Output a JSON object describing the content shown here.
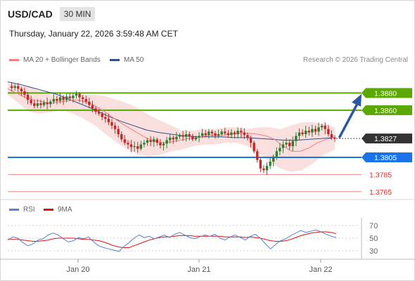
{
  "header": {
    "symbol": "USD/CAD",
    "timeframe": "30 MIN"
  },
  "timestamp": "Thursday, January 22, 2026 3:59:48 AM CET",
  "legend": {
    "ma20": {
      "label": "MA 20 + Bollinger Bands",
      "color": "#f08080"
    },
    "ma50": {
      "label": "MA 50",
      "color": "#2e4f8a"
    }
  },
  "credit": "Research © 2026 Trading Central",
  "rsi_legend": {
    "rsi": {
      "label": "RSI",
      "color": "#5b7fd6"
    },
    "ma9": {
      "label": "9MA",
      "color": "#dd1111"
    }
  },
  "colors": {
    "up": "#2e7d32",
    "down": "#c62828",
    "target_line": "#5aa800",
    "pivot_line": "#1a73e8",
    "support_line": "#f08a8a",
    "arrow": "#2a57a6",
    "current_tag": "#333333"
  },
  "chart_data": [
    {
      "type": "candlestick",
      "title": "",
      "price_ylim": [
        1.3755,
        1.39
      ],
      "levels": [
        {
          "label": "1.3880",
          "value": 1.388,
          "kind": "target"
        },
        {
          "label": "1.3860",
          "value": 1.386,
          "kind": "target"
        },
        {
          "label": "1.3827",
          "value": 1.3827,
          "kind": "current"
        },
        {
          "label": "1.3805",
          "value": 1.3805,
          "kind": "pivot"
        },
        {
          "label": "1.3785",
          "value": 1.3785,
          "kind": "support"
        },
        {
          "label": "1.3765",
          "value": 1.3765,
          "kind": "support"
        }
      ],
      "x_ticks": [
        "Jan 20",
        "Jan 21",
        "Jan 22"
      ],
      "close_path": [
        1.3888,
        1.3886,
        1.3888,
        1.3885,
        1.3882,
        1.3878,
        1.3872,
        1.3868,
        1.3865,
        1.3868,
        1.3866,
        1.3869,
        1.3867,
        1.387,
        1.3873,
        1.3871,
        1.3875,
        1.3872,
        1.3876,
        1.3874,
        1.3877,
        1.3879,
        1.3875,
        1.3873,
        1.387,
        1.3866,
        1.3862,
        1.3858,
        1.3856,
        1.3852,
        1.385,
        1.3846,
        1.3842,
        1.3838,
        1.3832,
        1.3826,
        1.3822,
        1.382,
        1.3817,
        1.3818,
        1.3815,
        1.382,
        1.3822,
        1.3825,
        1.3823,
        1.3826,
        1.3822,
        1.3819,
        1.3821,
        1.3825,
        1.3828,
        1.3826,
        1.3829,
        1.3831,
        1.3829,
        1.3832,
        1.383,
        1.3826,
        1.3828,
        1.383,
        1.3833,
        1.3831,
        1.3835,
        1.3833,
        1.383,
        1.3832,
        1.3835,
        1.3833,
        1.3831,
        1.3834,
        1.3832,
        1.3836,
        1.3834,
        1.3831,
        1.3828,
        1.3822,
        1.3812,
        1.3802,
        1.3792,
        1.379,
        1.3795,
        1.38,
        1.3806,
        1.3812,
        1.3816,
        1.382,
        1.3822,
        1.3818,
        1.3824,
        1.383,
        1.3834,
        1.3832,
        1.3836,
        1.3834,
        1.3838,
        1.3835,
        1.384,
        1.3842,
        1.3838,
        1.3832,
        1.3828,
        1.3827
      ],
      "ma20_path": [
        1.3885,
        1.388,
        1.3875,
        1.3872,
        1.387,
        1.3868,
        1.387,
        1.3871,
        1.3872,
        1.387,
        1.3866,
        1.386,
        1.3853,
        1.3846,
        1.384,
        1.3834,
        1.3828,
        1.3824,
        1.3822,
        1.3823,
        1.3825,
        1.3827,
        1.3828,
        1.383,
        1.3831,
        1.3831,
        1.3832,
        1.3833,
        1.3833,
        1.3832,
        1.383,
        1.3826,
        1.3818,
        1.3812,
        1.3812,
        1.3816,
        1.3822,
        1.3826,
        1.3828
      ],
      "ma50_path": [
        1.3893,
        1.389,
        1.3886,
        1.3882,
        1.3878,
        1.3872,
        1.3866,
        1.386,
        1.3853,
        1.3847,
        1.3842,
        1.3837,
        1.3834,
        1.3832,
        1.383,
        1.3829,
        1.3829,
        1.3829,
        1.3828,
        1.3828,
        1.3827,
        1.3826,
        1.3825,
        1.3825,
        1.3826,
        1.3827,
        1.3828
      ],
      "bollinger_upper": [
        1.3892,
        1.389,
        1.3888,
        1.3882,
        1.3878,
        1.3876,
        1.3876,
        1.3878,
        1.3878,
        1.3876,
        1.3872,
        1.3868,
        1.3862,
        1.3854,
        1.3848,
        1.3842,
        1.3836,
        1.3836,
        1.3838,
        1.3838,
        1.384,
        1.384,
        1.3838,
        1.384,
        1.384,
        1.3838,
        1.3842,
        1.3846,
        1.3846,
        1.3844,
        1.384
      ],
      "bollinger_lower": [
        1.3878,
        1.3868,
        1.3858,
        1.3856,
        1.3858,
        1.386,
        1.3856,
        1.385,
        1.3842,
        1.3832,
        1.3822,
        1.3814,
        1.3808,
        1.3806,
        1.3808,
        1.3812,
        1.3814,
        1.3818,
        1.382,
        1.382,
        1.3822,
        1.3822,
        1.3818,
        1.381,
        1.38,
        1.3792,
        1.3788,
        1.379,
        1.3798,
        1.3808,
        1.3814
      ]
    },
    {
      "type": "line",
      "title": "RSI",
      "ylim": [
        20,
        80
      ],
      "y_ticks": [
        "70",
        "50",
        "30"
      ],
      "series": [
        {
          "name": "RSI",
          "values": [
            47,
            52,
            50,
            43,
            38,
            41,
            47,
            49,
            55,
            58,
            55,
            49,
            44,
            46,
            51,
            49,
            52,
            44,
            38,
            35,
            33,
            31,
            29,
            37,
            43,
            50,
            55,
            51,
            53,
            49,
            52,
            55,
            51,
            56,
            59,
            55,
            51,
            49,
            52,
            55,
            53,
            56,
            50,
            47,
            52,
            55,
            51,
            47,
            53,
            56,
            50,
            41,
            33,
            40,
            46,
            49,
            54,
            58,
            62,
            59,
            61,
            63,
            60,
            56,
            53,
            51
          ]
        },
        {
          "name": "9MA",
          "values": [
            48,
            48,
            48,
            47,
            46,
            45,
            45,
            46,
            47,
            49,
            50,
            50,
            50,
            50,
            49,
            48,
            48,
            47,
            46,
            44,
            41,
            38,
            36,
            35,
            35,
            38,
            41,
            44,
            47,
            49,
            51,
            52,
            52,
            53,
            54,
            54,
            54,
            53,
            53,
            53,
            53,
            53,
            53,
            52,
            52,
            52,
            52,
            51,
            52,
            51,
            50,
            48,
            46,
            45,
            45,
            46,
            48,
            51,
            54,
            56,
            58,
            59,
            60,
            60,
            59,
            57
          ]
        }
      ]
    }
  ]
}
